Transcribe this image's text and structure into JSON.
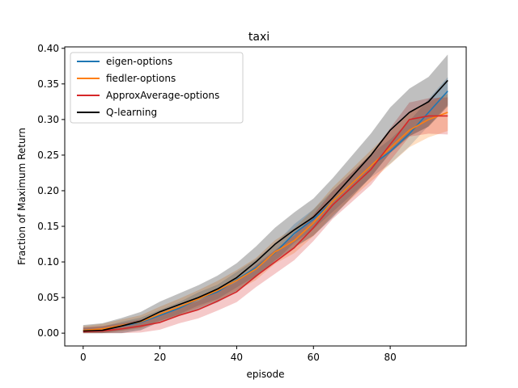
{
  "chart_data": {
    "type": "line",
    "title": "taxi",
    "xlabel": "episode",
    "ylabel": "Fraction of Maximum Return",
    "xlim": [
      -4.8,
      99.8
    ],
    "ylim": [
      -0.018,
      0.402
    ],
    "xticks": [
      0,
      20,
      40,
      60,
      80
    ],
    "xtick_labels": [
      "0",
      "20",
      "40",
      "60",
      "80"
    ],
    "yticks": [
      0.0,
      0.05,
      0.1,
      0.15,
      0.2,
      0.25,
      0.3,
      0.35,
      0.4
    ],
    "ytick_labels": [
      "0.00",
      "0.05",
      "0.10",
      "0.15",
      "0.20",
      "0.25",
      "0.30",
      "0.35",
      "0.40"
    ],
    "legend_position": "top-left",
    "x": [
      0,
      5,
      10,
      15,
      20,
      25,
      30,
      35,
      40,
      45,
      50,
      55,
      60,
      65,
      70,
      75,
      80,
      85,
      90,
      95
    ],
    "series": [
      {
        "name": "eigen-options",
        "color": "#1f77b4",
        "values": [
          0.003,
          0.004,
          0.01,
          0.015,
          0.025,
          0.035,
          0.048,
          0.058,
          0.075,
          0.092,
          0.113,
          0.14,
          0.16,
          0.185,
          0.21,
          0.235,
          0.255,
          0.28,
          0.31,
          0.34
        ],
        "band": 0.015
      },
      {
        "name": "fiedler-options",
        "color": "#ff7f0e",
        "values": [
          0.004,
          0.006,
          0.011,
          0.016,
          0.027,
          0.037,
          0.048,
          0.06,
          0.074,
          0.09,
          0.114,
          0.13,
          0.155,
          0.185,
          0.21,
          0.235,
          0.26,
          0.285,
          0.3,
          0.31
        ],
        "band": 0.02
      },
      {
        "name": "ApproxAverage-options",
        "color": "#d62728",
        "values": [
          0.002,
          0.003,
          0.006,
          0.01,
          0.015,
          0.025,
          0.033,
          0.045,
          0.058,
          0.08,
          0.1,
          0.12,
          0.148,
          0.18,
          0.205,
          0.23,
          0.265,
          0.3,
          0.305,
          0.305
        ],
        "band": 0.02
      },
      {
        "name": "Q-learning",
        "color": "#000000",
        "values": [
          0.003,
          0.004,
          0.01,
          0.017,
          0.03,
          0.04,
          0.05,
          0.062,
          0.078,
          0.1,
          0.125,
          0.145,
          0.163,
          0.19,
          0.22,
          0.25,
          0.285,
          0.31,
          0.325,
          0.355
        ],
        "band": 0.028
      }
    ]
  }
}
